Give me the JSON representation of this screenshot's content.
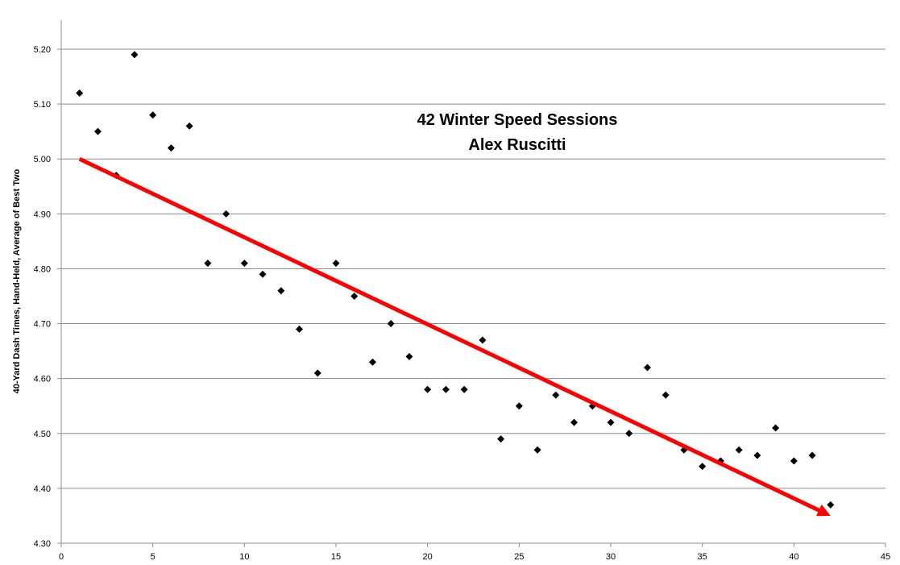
{
  "chart_data": {
    "type": "scatter",
    "title": "42 Winter Speed Sessions",
    "subtitle": "Alex Ruscitti",
    "xlabel": "",
    "ylabel": "40-Yard Dash Times, Hand-Held, Average of Best Two",
    "xlim": [
      0,
      45
    ],
    "ylim": [
      4.3,
      5.2
    ],
    "x_ticks": [
      "0",
      "5",
      "10",
      "15",
      "20",
      "25",
      "30",
      "35",
      "40",
      "45"
    ],
    "y_ticks": [
      "4.30",
      "4.40",
      "4.50",
      "4.60",
      "4.70",
      "4.80",
      "4.90",
      "5.00",
      "5.10",
      "5.20"
    ],
    "grid": "horizontal",
    "series": [
      {
        "marker": "diamond",
        "color": "#000000",
        "points": [
          [
            1,
            5.12
          ],
          [
            2,
            5.05
          ],
          [
            3,
            4.97
          ],
          [
            4,
            5.19
          ],
          [
            5,
            5.08
          ],
          [
            6,
            5.02
          ],
          [
            7,
            5.06
          ],
          [
            8,
            4.81
          ],
          [
            9,
            4.9
          ],
          [
            10,
            4.81
          ],
          [
            11,
            4.79
          ],
          [
            12,
            4.76
          ],
          [
            13,
            4.69
          ],
          [
            14,
            4.61
          ],
          [
            15,
            4.81
          ],
          [
            16,
            4.75
          ],
          [
            17,
            4.63
          ],
          [
            18,
            4.7
          ],
          [
            19,
            4.64
          ],
          [
            20,
            4.58
          ],
          [
            21,
            4.58
          ],
          [
            22,
            4.58
          ],
          [
            23,
            4.67
          ],
          [
            24,
            4.49
          ],
          [
            25,
            4.55
          ],
          [
            26,
            4.47
          ],
          [
            27,
            4.57
          ],
          [
            28,
            4.52
          ],
          [
            29,
            4.55
          ],
          [
            30,
            4.52
          ],
          [
            31,
            4.5
          ],
          [
            32,
            4.62
          ],
          [
            33,
            4.57
          ],
          [
            34,
            4.47
          ],
          [
            35,
            4.44
          ],
          [
            36,
            4.45
          ],
          [
            37,
            4.47
          ],
          [
            38,
            4.46
          ],
          [
            39,
            4.51
          ],
          [
            40,
            4.45
          ],
          [
            41,
            4.46
          ],
          [
            42,
            4.37
          ]
        ]
      }
    ],
    "trend_arrow": {
      "from": [
        1,
        5.0
      ],
      "to": [
        42,
        4.35
      ],
      "color": "#ff0000"
    }
  }
}
